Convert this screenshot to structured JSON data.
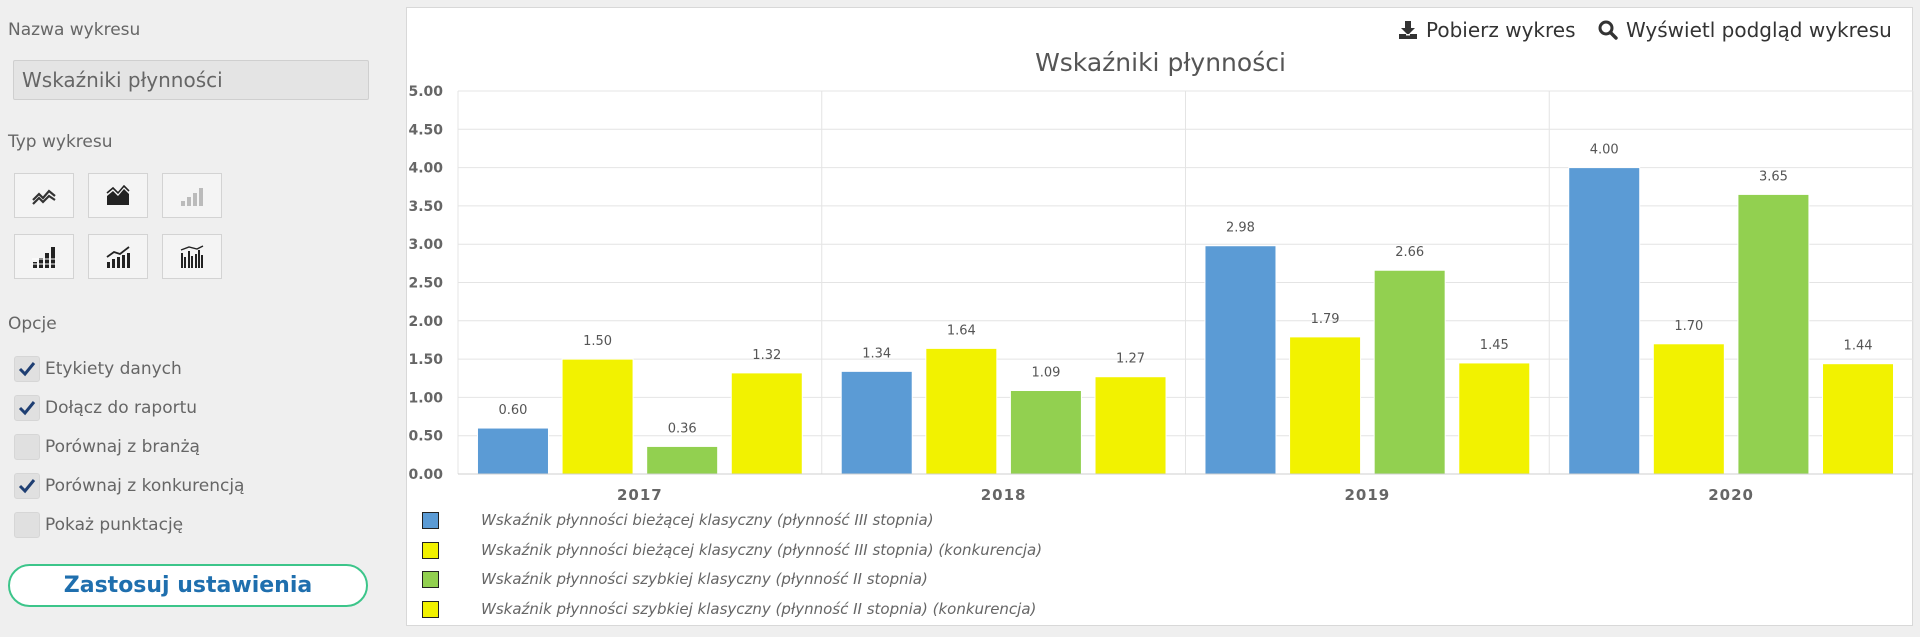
{
  "sidebar": {
    "chart_name_label": "Nazwa wykresu",
    "chart_name_value": "Wskaźniki płynności",
    "chart_type_label": "Typ wykresu",
    "chart_types": [
      {
        "icon": "line-chart-icon",
        "enabled": true
      },
      {
        "icon": "area-chart-icon",
        "enabled": true
      },
      {
        "icon": "bar-chart-icon",
        "enabled": false
      },
      {
        "icon": "stacked-bar-chart-icon",
        "enabled": true
      },
      {
        "icon": "bar-line-combo-chart-icon",
        "enabled": true
      },
      {
        "icon": "grouped-bar-chart-icon",
        "enabled": true
      }
    ],
    "options_label": "Opcje",
    "options": [
      {
        "label": "Etykiety danych",
        "checked": true
      },
      {
        "label": "Dołącz do raportu",
        "checked": true
      },
      {
        "label": "Porównaj z branżą",
        "checked": false
      },
      {
        "label": "Porównaj z konkurencją",
        "checked": true
      },
      {
        "label": "Pokaż punktację",
        "checked": false
      }
    ],
    "apply_label": "Zastosuj ustawienia"
  },
  "toolbar": {
    "download_label": "Pobierz wykres",
    "preview_label": "Wyświetl podgląd wykresu"
  },
  "colors": {
    "blue": "#5b9bd5",
    "yellow": "#f2f200",
    "green": "#92d050",
    "accent_button": "#1f6fae",
    "button_border": "#3cc58a"
  },
  "chart_data": {
    "type": "bar",
    "title": "Wskaźniki płynności",
    "categories": [
      "2017",
      "2018",
      "2019",
      "2020"
    ],
    "ylim": [
      0,
      5
    ],
    "y_ticks": [
      "0.00",
      "0.50",
      "1.00",
      "1.50",
      "2.00",
      "2.50",
      "3.00",
      "3.50",
      "4.00",
      "4.50",
      "5.00"
    ],
    "grid": true,
    "data_labels": true,
    "legend_position": "bottom-left",
    "series": [
      {
        "name": "Wskaźnik płynności bieżącej klasyczny (płynność III stopnia)",
        "color": "#5b9bd5",
        "values": [
          0.6,
          1.34,
          2.98,
          4.0
        ]
      },
      {
        "name": "Wskaźnik płynności bieżącej klasyczny (płynność III stopnia) (konkurencja)",
        "color": "#f2f200",
        "values": [
          1.5,
          1.64,
          1.79,
          1.7
        ]
      },
      {
        "name": "Wskaźnik płynności szybkiej klasyczny (płynność II stopnia)",
        "color": "#92d050",
        "values": [
          0.36,
          1.09,
          2.66,
          3.65
        ]
      },
      {
        "name": "Wskaźnik płynności szybkiej klasyczny (płynność II stopnia) (konkurencja)",
        "color": "#f2f200",
        "values": [
          1.32,
          1.27,
          1.45,
          1.44
        ]
      }
    ]
  }
}
